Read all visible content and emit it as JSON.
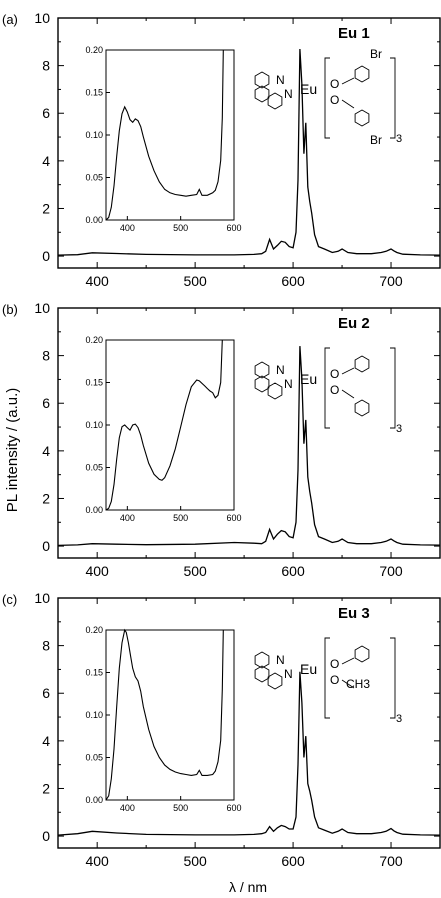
{
  "figure": {
    "ylabel": "PL  intensity  / (a.u.)",
    "xlabel": "λ / nm"
  },
  "chart_data": [
    {
      "type": "line",
      "panel": "(a)",
      "label": "Eu 1",
      "xlim": [
        360,
        750
      ],
      "ylim": [
        -0.5,
        10
      ],
      "xticks": [
        400,
        500,
        600,
        700
      ],
      "yticks": [
        0,
        2,
        4,
        6,
        8,
        10
      ],
      "series": [
        {
          "x": [
            360,
            380,
            395,
            420,
            450,
            500,
            540,
            560,
            568,
            572,
            576,
            580,
            584,
            588,
            592,
            596,
            600,
            603,
            605,
            607,
            609,
            611,
            613,
            615,
            617,
            619,
            622,
            626,
            632,
            640,
            646,
            650,
            656,
            665,
            680,
            690,
            695,
            700,
            703,
            706,
            712,
            730,
            750
          ],
          "y": [
            0.04,
            0.06,
            0.14,
            0.11,
            0.07,
            0.05,
            0.05,
            0.07,
            0.1,
            0.2,
            0.7,
            0.3,
            0.45,
            0.62,
            0.58,
            0.4,
            0.35,
            1.0,
            3.2,
            8.7,
            7.2,
            4.3,
            5.6,
            2.9,
            2.3,
            1.8,
            0.9,
            0.4,
            0.3,
            0.15,
            0.2,
            0.3,
            0.15,
            0.1,
            0.1,
            0.15,
            0.2,
            0.3,
            0.22,
            0.15,
            0.08,
            0.05,
            0.04
          ]
        }
      ],
      "inset": {
        "xlim": [
          360,
          600
        ],
        "ylim": [
          0,
          0.2
        ],
        "xticks": [
          400,
          500,
          600
        ],
        "yticks": [
          0.0,
          0.05,
          0.1,
          0.15,
          0.2
        ],
        "x": [
          360,
          365,
          370,
          375,
          380,
          385,
          390,
          395,
          400,
          405,
          410,
          415,
          420,
          425,
          430,
          440,
          450,
          460,
          470,
          480,
          490,
          500,
          510,
          520,
          530,
          535,
          540,
          550,
          560,
          565,
          570,
          575,
          578,
          580,
          582,
          585
        ],
        "y": [
          0.0,
          0.003,
          0.015,
          0.04,
          0.075,
          0.105,
          0.125,
          0.133,
          0.127,
          0.118,
          0.115,
          0.119,
          0.117,
          0.11,
          0.098,
          0.075,
          0.058,
          0.045,
          0.036,
          0.032,
          0.03,
          0.029,
          0.028,
          0.029,
          0.03,
          0.036,
          0.029,
          0.029,
          0.032,
          0.035,
          0.045,
          0.07,
          0.12,
          0.2,
          0.2,
          0.2
        ]
      },
      "structure": {
        "top": "Br",
        "bottom": "Br",
        "sub": "3"
      }
    },
    {
      "type": "line",
      "panel": "(b)",
      "label": "Eu 2",
      "xlim": [
        360,
        750
      ],
      "ylim": [
        -0.5,
        10
      ],
      "xticks": [
        400,
        500,
        600,
        700
      ],
      "yticks": [
        0,
        2,
        4,
        6,
        8,
        10
      ],
      "series": [
        {
          "x": [
            360,
            380,
            395,
            420,
            450,
            500,
            540,
            560,
            568,
            572,
            576,
            580,
            584,
            588,
            592,
            596,
            600,
            603,
            605,
            607,
            609,
            611,
            613,
            615,
            617,
            619,
            622,
            626,
            632,
            640,
            646,
            650,
            656,
            665,
            680,
            690,
            695,
            700,
            703,
            706,
            712,
            730,
            750
          ],
          "y": [
            0.03,
            0.05,
            0.1,
            0.08,
            0.06,
            0.08,
            0.15,
            0.12,
            0.1,
            0.2,
            0.7,
            0.3,
            0.5,
            0.65,
            0.6,
            0.4,
            0.35,
            1.0,
            3.2,
            8.4,
            7.0,
            4.3,
            5.3,
            2.9,
            2.3,
            1.8,
            0.9,
            0.4,
            0.3,
            0.15,
            0.2,
            0.3,
            0.15,
            0.1,
            0.1,
            0.15,
            0.2,
            0.3,
            0.22,
            0.15,
            0.08,
            0.05,
            0.04
          ]
        }
      ],
      "inset": {
        "xlim": [
          360,
          600
        ],
        "ylim": [
          0,
          0.2
        ],
        "xticks": [
          400,
          500,
          600
        ],
        "yticks": [
          0.0,
          0.05,
          0.1,
          0.15,
          0.2
        ],
        "x": [
          360,
          365,
          370,
          375,
          380,
          385,
          390,
          395,
          400,
          405,
          410,
          415,
          420,
          425,
          430,
          440,
          450,
          460,
          465,
          470,
          480,
          490,
          500,
          510,
          520,
          530,
          535,
          540,
          545,
          550,
          555,
          560,
          565,
          570,
          575,
          578,
          580,
          582,
          585
        ],
        "y": [
          0.0,
          0.002,
          0.01,
          0.03,
          0.06,
          0.085,
          0.098,
          0.1,
          0.097,
          0.094,
          0.1,
          0.101,
          0.097,
          0.088,
          0.076,
          0.055,
          0.042,
          0.036,
          0.035,
          0.038,
          0.052,
          0.072,
          0.098,
          0.124,
          0.145,
          0.153,
          0.152,
          0.149,
          0.146,
          0.143,
          0.14,
          0.138,
          0.132,
          0.135,
          0.15,
          0.2,
          0.2,
          0.2,
          0.2
        ]
      },
      "structure": {
        "top": "",
        "bottom": "",
        "sub": "3"
      }
    },
    {
      "type": "line",
      "panel": "(c)",
      "label": "Eu 3",
      "xlim": [
        360,
        750
      ],
      "ylim": [
        -0.5,
        10
      ],
      "xticks": [
        400,
        500,
        600,
        700
      ],
      "yticks": [
        0,
        2,
        4,
        6,
        8,
        10
      ],
      "series": [
        {
          "x": [
            360,
            380,
            395,
            420,
            450,
            500,
            540,
            560,
            568,
            572,
            576,
            580,
            584,
            588,
            592,
            596,
            600,
            603,
            605,
            607,
            609,
            611,
            613,
            615,
            617,
            619,
            622,
            626,
            632,
            640,
            646,
            650,
            656,
            665,
            680,
            690,
            695,
            700,
            703,
            706,
            712,
            730,
            750
          ],
          "y": [
            0.04,
            0.1,
            0.2,
            0.13,
            0.07,
            0.05,
            0.05,
            0.07,
            0.1,
            0.15,
            0.4,
            0.2,
            0.35,
            0.45,
            0.4,
            0.3,
            0.3,
            0.8,
            3.0,
            6.9,
            5.6,
            3.3,
            4.2,
            2.2,
            1.9,
            1.5,
            0.8,
            0.35,
            0.25,
            0.12,
            0.2,
            0.3,
            0.15,
            0.1,
            0.1,
            0.15,
            0.2,
            0.32,
            0.22,
            0.15,
            0.08,
            0.05,
            0.04
          ]
        }
      ],
      "inset": {
        "xlim": [
          360,
          600
        ],
        "ylim": [
          0,
          0.2
        ],
        "xticks": [
          400,
          500,
          600
        ],
        "yticks": [
          0.0,
          0.05,
          0.1,
          0.15,
          0.2
        ],
        "x": [
          360,
          365,
          370,
          375,
          380,
          385,
          390,
          395,
          398,
          402,
          406,
          410,
          415,
          420,
          425,
          430,
          440,
          450,
          460,
          470,
          480,
          490,
          500,
          510,
          520,
          530,
          535,
          540,
          550,
          560,
          565,
          570,
          575,
          578,
          580,
          582,
          585
        ],
        "y": [
          0.0,
          0.005,
          0.025,
          0.06,
          0.11,
          0.155,
          0.185,
          0.2,
          0.197,
          0.185,
          0.17,
          0.155,
          0.145,
          0.14,
          0.128,
          0.11,
          0.083,
          0.063,
          0.05,
          0.041,
          0.036,
          0.033,
          0.031,
          0.03,
          0.029,
          0.03,
          0.035,
          0.029,
          0.029,
          0.03,
          0.034,
          0.045,
          0.07,
          0.13,
          0.2,
          0.2,
          0.2
        ]
      },
      "structure": {
        "top": "",
        "bottom": "CH3",
        "sub": "3"
      }
    }
  ]
}
